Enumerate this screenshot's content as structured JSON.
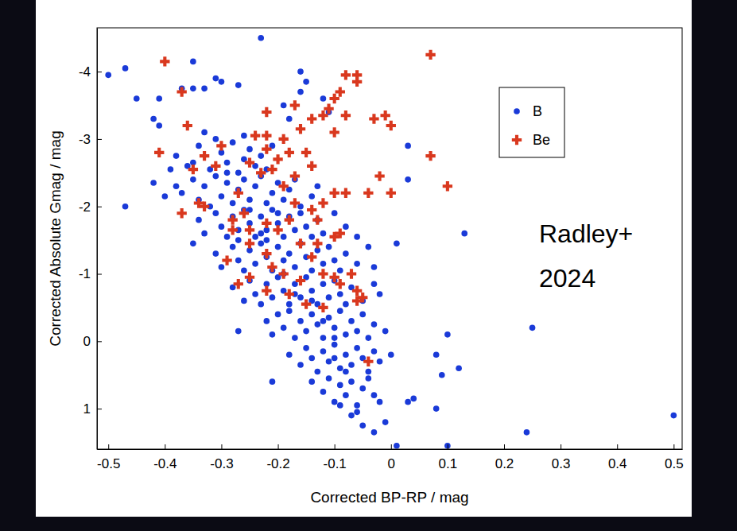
{
  "chart_data": {
    "type": "scatter",
    "x_label": "Corrected BP-RP / mag",
    "y_label": "Corrected Absolute Gmag / mag",
    "annotations": [
      "Radley+",
      "2024"
    ],
    "xlim": [
      -0.52,
      0.515
    ],
    "ylim": [
      1.6,
      -4.65
    ],
    "xticks": [
      -0.5,
      -0.4,
      -0.3,
      -0.2,
      -0.1,
      0,
      0.1,
      0.2,
      0.3,
      0.4,
      0.5
    ],
    "yticks": [
      -4,
      -3,
      -2,
      -1,
      0,
      1
    ],
    "grid": false,
    "legend": "upper right",
    "series": [
      {
        "name": "B",
        "color": "#1a3ad8",
        "marker": "circle",
        "x": [
          -0.5,
          -0.47,
          -0.45,
          -0.42,
          -0.41,
          -0.41,
          -0.4,
          -0.47,
          -0.38,
          -0.37,
          -0.35,
          -0.35,
          -0.33,
          -0.31,
          -0.3,
          -0.27,
          -0.23,
          -0.33,
          -0.16,
          -0.15,
          -0.16,
          -0.12,
          -0.11,
          -0.18,
          -0.19,
          0.03,
          0.03,
          0.13,
          0.01,
          0.1,
          0.25,
          0.08,
          0.12,
          0.09,
          0.04,
          0.08,
          0.5,
          0.24,
          0.1,
          0.01,
          -0.03,
          -0.21,
          -0.27,
          -0.35,
          -0.42,
          -0.02,
          0.03,
          -0.01,
          -0.06,
          -0.38,
          -0.36,
          -0.34,
          -0.32,
          -0.3,
          -0.29,
          -0.28,
          -0.27,
          -0.26,
          -0.25,
          -0.24,
          -0.23,
          -0.22,
          -0.21,
          -0.35,
          -0.31,
          -0.26,
          -0.39,
          -0.37,
          -0.35,
          -0.34,
          -0.33,
          -0.31,
          -0.3,
          -0.29,
          -0.28,
          -0.27,
          -0.26,
          -0.25,
          -0.24,
          -0.23,
          -0.22,
          -0.21,
          -0.2,
          -0.19,
          -0.18,
          -0.17,
          -0.16,
          -0.14,
          -0.13,
          -0.29,
          -0.32,
          -0.34,
          -0.33,
          -0.31,
          -0.3,
          -0.29,
          -0.28,
          -0.27,
          -0.26,
          -0.25,
          -0.24,
          -0.23,
          -0.22,
          -0.21,
          -0.2,
          -0.19,
          -0.18,
          -0.17,
          -0.16,
          -0.15,
          -0.14,
          -0.13,
          -0.12,
          -0.1,
          -0.08,
          -0.06,
          -0.27,
          -0.23,
          -0.2,
          -0.25,
          -0.31,
          -0.3,
          -0.28,
          -0.27,
          -0.26,
          -0.25,
          -0.24,
          -0.23,
          -0.22,
          -0.21,
          -0.2,
          -0.19,
          -0.18,
          -0.17,
          -0.16,
          -0.15,
          -0.14,
          -0.13,
          -0.12,
          -0.11,
          -0.1,
          -0.09,
          -0.08,
          -0.06,
          -0.04,
          -0.03,
          -0.22,
          -0.19,
          -0.28,
          -0.26,
          -0.25,
          -0.24,
          -0.23,
          -0.22,
          -0.21,
          -0.2,
          -0.19,
          -0.18,
          -0.17,
          -0.16,
          -0.15,
          -0.14,
          -0.13,
          -0.12,
          -0.11,
          -0.1,
          -0.09,
          -0.08,
          -0.07,
          -0.05,
          -0.03,
          -0.02,
          -0.17,
          -0.14,
          -0.22,
          -0.21,
          -0.2,
          -0.19,
          -0.18,
          -0.17,
          -0.16,
          -0.15,
          -0.14,
          -0.13,
          -0.12,
          -0.11,
          -0.1,
          -0.09,
          -0.08,
          -0.07,
          -0.06,
          -0.05,
          -0.04,
          -0.03,
          -0.01,
          -0.12,
          -0.1,
          -0.18,
          -0.16,
          -0.15,
          -0.14,
          -0.13,
          -0.12,
          -0.11,
          -0.1,
          -0.09,
          -0.08,
          -0.07,
          -0.06,
          -0.05,
          -0.04,
          -0.03,
          -0.02,
          0.0,
          -0.1,
          -0.08,
          -0.14,
          -0.12,
          -0.11,
          -0.1,
          -0.09,
          -0.08,
          -0.07,
          -0.06,
          -0.05,
          -0.04,
          -0.03,
          -0.09,
          -0.05,
          -0.07
        ],
        "values": [
          -3.95,
          -4.05,
          -3.6,
          -3.3,
          -3.6,
          -3.2,
          -2.15,
          -2.0,
          -2.3,
          -3.75,
          -4.15,
          -3.75,
          -3.75,
          -3.9,
          -3.85,
          -3.8,
          -4.5,
          -3.1,
          -3.7,
          -3.85,
          -4.0,
          -3.6,
          -3.4,
          -3.3,
          -3.5,
          -2.9,
          -2.4,
          -1.6,
          -1.45,
          -0.1,
          -0.2,
          0.2,
          0.4,
          0.5,
          0.85,
          1.0,
          1.1,
          1.35,
          1.55,
          1.55,
          1.35,
          0.6,
          -0.15,
          -1.45,
          -2.35,
          0.9,
          0.9,
          1.2,
          1.05,
          -2.75,
          -2.6,
          -2.9,
          -2.55,
          -2.8,
          -2.65,
          -2.95,
          -2.5,
          -2.7,
          -2.85,
          -2.6,
          -2.75,
          -2.55,
          -2.9,
          -2.65,
          -3.0,
          -3.05,
          -2.55,
          -2.2,
          -2.4,
          -2.1,
          -2.3,
          -2.45,
          -2.15,
          -2.35,
          -2.05,
          -2.25,
          -2.4,
          -2.1,
          -2.3,
          -2.45,
          -2.05,
          -2.2,
          -2.35,
          -2.1,
          -2.25,
          -2.4,
          -2.0,
          -2.15,
          -2.3,
          -2.5,
          -2.0,
          -1.8,
          -1.6,
          -1.9,
          -1.7,
          -1.55,
          -1.85,
          -1.65,
          -1.95,
          -1.75,
          -1.55,
          -1.85,
          -1.65,
          -1.95,
          -1.75,
          -1.55,
          -1.85,
          -1.65,
          -1.9,
          -1.7,
          -1.55,
          -1.8,
          -1.6,
          -1.9,
          -1.7,
          -1.55,
          -1.5,
          -1.6,
          -1.9,
          -1.95,
          -1.3,
          -1.1,
          -1.4,
          -1.2,
          -1.05,
          -1.35,
          -1.15,
          -1.45,
          -1.25,
          -1.05,
          -1.4,
          -1.2,
          -1.3,
          -1.1,
          -1.45,
          -1.25,
          -1.05,
          -1.35,
          -1.15,
          -1.4,
          -1.2,
          -1.05,
          -1.3,
          -1.15,
          -1.4,
          -1.1,
          -1.5,
          -1.0,
          -0.8,
          -0.6,
          -0.9,
          -0.7,
          -0.55,
          -0.85,
          -0.65,
          -0.95,
          -0.75,
          -0.55,
          -0.85,
          -0.65,
          -0.95,
          -0.75,
          -0.55,
          -0.85,
          -0.65,
          -0.9,
          -0.7,
          -0.55,
          -0.8,
          -0.6,
          -0.85,
          -0.7,
          -0.7,
          -0.6,
          -0.3,
          -0.1,
          -0.4,
          -0.2,
          -0.45,
          -0.05,
          -0.3,
          -0.15,
          -0.4,
          -0.25,
          -0.05,
          -0.35,
          -0.2,
          -0.45,
          -0.1,
          -0.3,
          -0.15,
          -0.4,
          -0.05,
          -0.25,
          -0.15,
          -0.3,
          -0.05,
          0.2,
          0.35,
          0.1,
          0.25,
          0.45,
          0.15,
          0.3,
          0.05,
          0.4,
          0.2,
          0.35,
          0.1,
          0.25,
          0.45,
          0.15,
          0.3,
          0.2,
          0.25,
          0.45,
          0.6,
          0.75,
          0.55,
          0.9,
          0.65,
          0.8,
          0.6,
          0.95,
          0.7,
          0.55,
          0.8,
          0.95,
          1.25,
          1.1
        ]
      },
      {
        "name": "Be",
        "color": "#d9381e",
        "marker": "plus",
        "x": [
          -0.4,
          -0.37,
          -0.36,
          -0.41,
          -0.35,
          -0.33,
          -0.31,
          -0.37,
          -0.34,
          -0.27,
          -0.26,
          -0.25,
          -0.22,
          -0.22,
          -0.24,
          -0.25,
          -0.23,
          -0.22,
          -0.2,
          -0.18,
          -0.17,
          -0.15,
          -0.17,
          -0.16,
          -0.14,
          -0.12,
          -0.11,
          -0.1,
          -0.09,
          -0.08,
          -0.06,
          -0.06,
          -0.1,
          -0.08,
          -0.03,
          -0.01,
          0.0,
          0.07,
          0.07,
          0.1,
          -0.02,
          -0.04,
          0.0,
          -0.08,
          -0.1,
          -0.12,
          -0.14,
          -0.17,
          -0.18,
          -0.2,
          -0.22,
          -0.28,
          -0.29,
          -0.25,
          -0.22,
          -0.19,
          -0.21,
          -0.13,
          -0.14,
          -0.1,
          -0.09,
          -0.12,
          -0.1,
          -0.07,
          -0.06,
          -0.05,
          -0.09,
          -0.16,
          -0.18,
          -0.22,
          -0.25,
          -0.27,
          -0.15,
          -0.12,
          -0.04,
          -0.06,
          -0.13,
          -0.16,
          -0.19,
          -0.21,
          -0.3,
          -0.19,
          -0.14,
          -0.33,
          -0.28
        ],
        "values": [
          -4.15,
          -3.7,
          -3.2,
          -2.8,
          -2.55,
          -2.75,
          -2.6,
          -1.9,
          -2.05,
          -2.2,
          -1.9,
          -1.65,
          -3.4,
          -3.05,
          -3.05,
          -2.65,
          -2.5,
          -2.85,
          -2.7,
          -2.8,
          -2.45,
          -2.8,
          -3.5,
          -3.15,
          -3.3,
          -3.35,
          -3.45,
          -3.6,
          -3.7,
          -3.95,
          -3.95,
          -3.85,
          -3.1,
          -3.35,
          -3.3,
          -3.35,
          -3.2,
          -4.25,
          -2.75,
          -2.3,
          -2.45,
          -2.2,
          -2.2,
          -2.2,
          -2.2,
          -2.05,
          -1.95,
          -2.05,
          -1.8,
          -1.65,
          -1.75,
          -1.8,
          -1.2,
          -1.45,
          -1.3,
          -1.0,
          -1.1,
          -1.45,
          -1.25,
          -1.55,
          -1.6,
          -1.0,
          -0.95,
          -1.0,
          -0.75,
          -0.65,
          -0.85,
          -0.9,
          -0.7,
          -0.75,
          -0.95,
          -0.85,
          -0.55,
          -0.5,
          0.3,
          -0.6,
          -1.8,
          -1.45,
          -2.3,
          -2.55,
          -2.9,
          -3.0,
          -2.6,
          -2.0,
          -1.65
        ]
      }
    ]
  }
}
